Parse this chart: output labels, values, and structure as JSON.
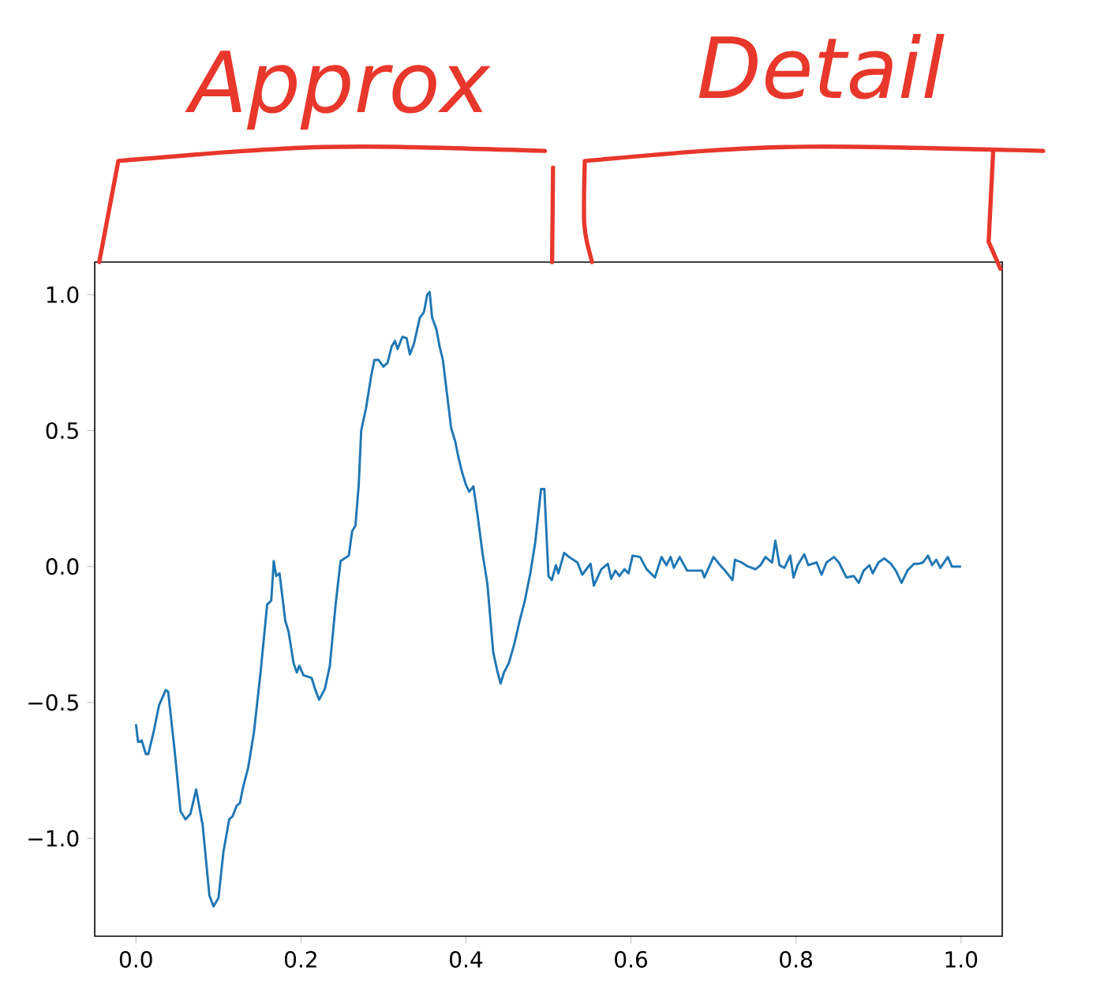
{
  "chart_data": {
    "type": "line",
    "annotations": [
      "Approx",
      "Detail"
    ],
    "xlim": [
      -0.05,
      1.05
    ],
    "ylim": [
      -1.36,
      1.12
    ],
    "xticks": [
      {
        "value": 0,
        "label": "0.0"
      },
      {
        "value": 0.2,
        "label": "0.2"
      },
      {
        "value": 0.4,
        "label": "0.4"
      },
      {
        "value": 0.6,
        "label": "0.6"
      },
      {
        "value": 0.8,
        "label": "0.8"
      },
      {
        "value": 1,
        "label": "1.0"
      }
    ],
    "yticks": [
      {
        "value": -1,
        "label": "−1.0"
      },
      {
        "value": -0.5,
        "label": "−0.5"
      },
      {
        "value": 0,
        "label": "0.0"
      },
      {
        "value": 0.5,
        "label": "0.5"
      },
      {
        "value": 1,
        "label": "1.0"
      }
    ],
    "marker": "none",
    "line_style": "solid",
    "series": [
      {
        "color": "#1f77b4",
        "x": [
          0.0,
          0.0025,
          0.007,
          0.012,
          0.015,
          0.022,
          0.028,
          0.036,
          0.039,
          0.047,
          0.054,
          0.06,
          0.066,
          0.073,
          0.081,
          0.089,
          0.094,
          0.1,
          0.106,
          0.113,
          0.117,
          0.122,
          0.126,
          0.13,
          0.136,
          0.143,
          0.151,
          0.159,
          0.164,
          0.167,
          0.17,
          0.174,
          0.181,
          0.185,
          0.191,
          0.195,
          0.198,
          0.203,
          0.213,
          0.217,
          0.222,
          0.229,
          0.235,
          0.242,
          0.248,
          0.258,
          0.262,
          0.266,
          0.27,
          0.273,
          0.279,
          0.285,
          0.289,
          0.294,
          0.3,
          0.305,
          0.31,
          0.314,
          0.317,
          0.323,
          0.328,
          0.332,
          0.337,
          0.344,
          0.349,
          0.353,
          0.356,
          0.359,
          0.364,
          0.368,
          0.372,
          0.377,
          0.382,
          0.387,
          0.391,
          0.395,
          0.4,
          0.404,
          0.409,
          0.414,
          0.42,
          0.426,
          0.433,
          0.438,
          0.442,
          0.446,
          0.452,
          0.459,
          0.465,
          0.471,
          0.478,
          0.484,
          0.491,
          0.495,
          0.5,
          0.504,
          0.509,
          0.512,
          0.519,
          0.525,
          0.535,
          0.541,
          0.551,
          0.555,
          0.564,
          0.572,
          0.576,
          0.581,
          0.586,
          0.592,
          0.597,
          0.602,
          0.611,
          0.619,
          0.629,
          0.637,
          0.643,
          0.648,
          0.652,
          0.659,
          0.668,
          0.678,
          0.686,
          0.689,
          0.7,
          0.708,
          0.714,
          0.723,
          0.726,
          0.734,
          0.742,
          0.751,
          0.757,
          0.763,
          0.771,
          0.775,
          0.78,
          0.786,
          0.793,
          0.797,
          0.802,
          0.81,
          0.815,
          0.825,
          0.831,
          0.837,
          0.846,
          0.852,
          0.861,
          0.87,
          0.876,
          0.882,
          0.889,
          0.893,
          0.9,
          0.907,
          0.915,
          0.921,
          0.928,
          0.935,
          0.943,
          0.949,
          0.954,
          0.96,
          0.965,
          0.97,
          0.975,
          0.984,
          0.989,
          1.0
        ],
        "values": [
          -0.58,
          -0.645,
          -0.64,
          -0.69,
          -0.69,
          -0.6,
          -0.51,
          -0.455,
          -0.46,
          -0.68,
          -0.9,
          -0.93,
          -0.91,
          -0.82,
          -0.955,
          -1.21,
          -1.25,
          -1.22,
          -1.05,
          -0.93,
          -0.92,
          -0.88,
          -0.87,
          -0.81,
          -0.74,
          -0.61,
          -0.39,
          -0.14,
          -0.125,
          0.02,
          -0.035,
          -0.025,
          -0.2,
          -0.24,
          -0.355,
          -0.39,
          -0.365,
          -0.4,
          -0.41,
          -0.45,
          -0.49,
          -0.45,
          -0.365,
          -0.14,
          0.02,
          0.04,
          0.13,
          0.15,
          0.3,
          0.5,
          0.585,
          0.7,
          0.76,
          0.76,
          0.735,
          0.75,
          0.81,
          0.83,
          0.8,
          0.845,
          0.84,
          0.78,
          0.82,
          0.915,
          0.935,
          1.0,
          1.01,
          0.915,
          0.875,
          0.81,
          0.76,
          0.635,
          0.51,
          0.46,
          0.4,
          0.35,
          0.3,
          0.275,
          0.295,
          0.19,
          0.05,
          -0.065,
          -0.315,
          -0.385,
          -0.43,
          -0.39,
          -0.355,
          -0.28,
          -0.2,
          -0.13,
          -0.025,
          0.09,
          0.285,
          0.285,
          -0.035,
          -0.05,
          0.005,
          -0.025,
          0.05,
          0.035,
          0.015,
          -0.03,
          0.01,
          -0.07,
          -0.01,
          0.01,
          -0.045,
          -0.015,
          -0.035,
          -0.01,
          -0.025,
          0.04,
          0.035,
          -0.01,
          -0.04,
          0.035,
          0.005,
          0.035,
          -0.005,
          0.035,
          -0.015,
          -0.015,
          -0.015,
          -0.04,
          0.035,
          0.005,
          -0.015,
          -0.05,
          0.025,
          0.015,
          0.0,
          -0.01,
          0.005,
          0.035,
          0.015,
          0.095,
          0.005,
          -0.005,
          0.04,
          -0.04,
          0.005,
          0.045,
          0.005,
          0.015,
          -0.03,
          0.015,
          0.035,
          0.015,
          -0.04,
          -0.035,
          -0.06,
          -0.015,
          0.005,
          -0.025,
          0.015,
          0.03,
          0.01,
          -0.015,
          -0.06,
          -0.015,
          0.01,
          0.01,
          0.015,
          0.04,
          0.005,
          0.025,
          -0.005,
          0.035,
          0.0,
          0.0
        ]
      }
    ]
  }
}
